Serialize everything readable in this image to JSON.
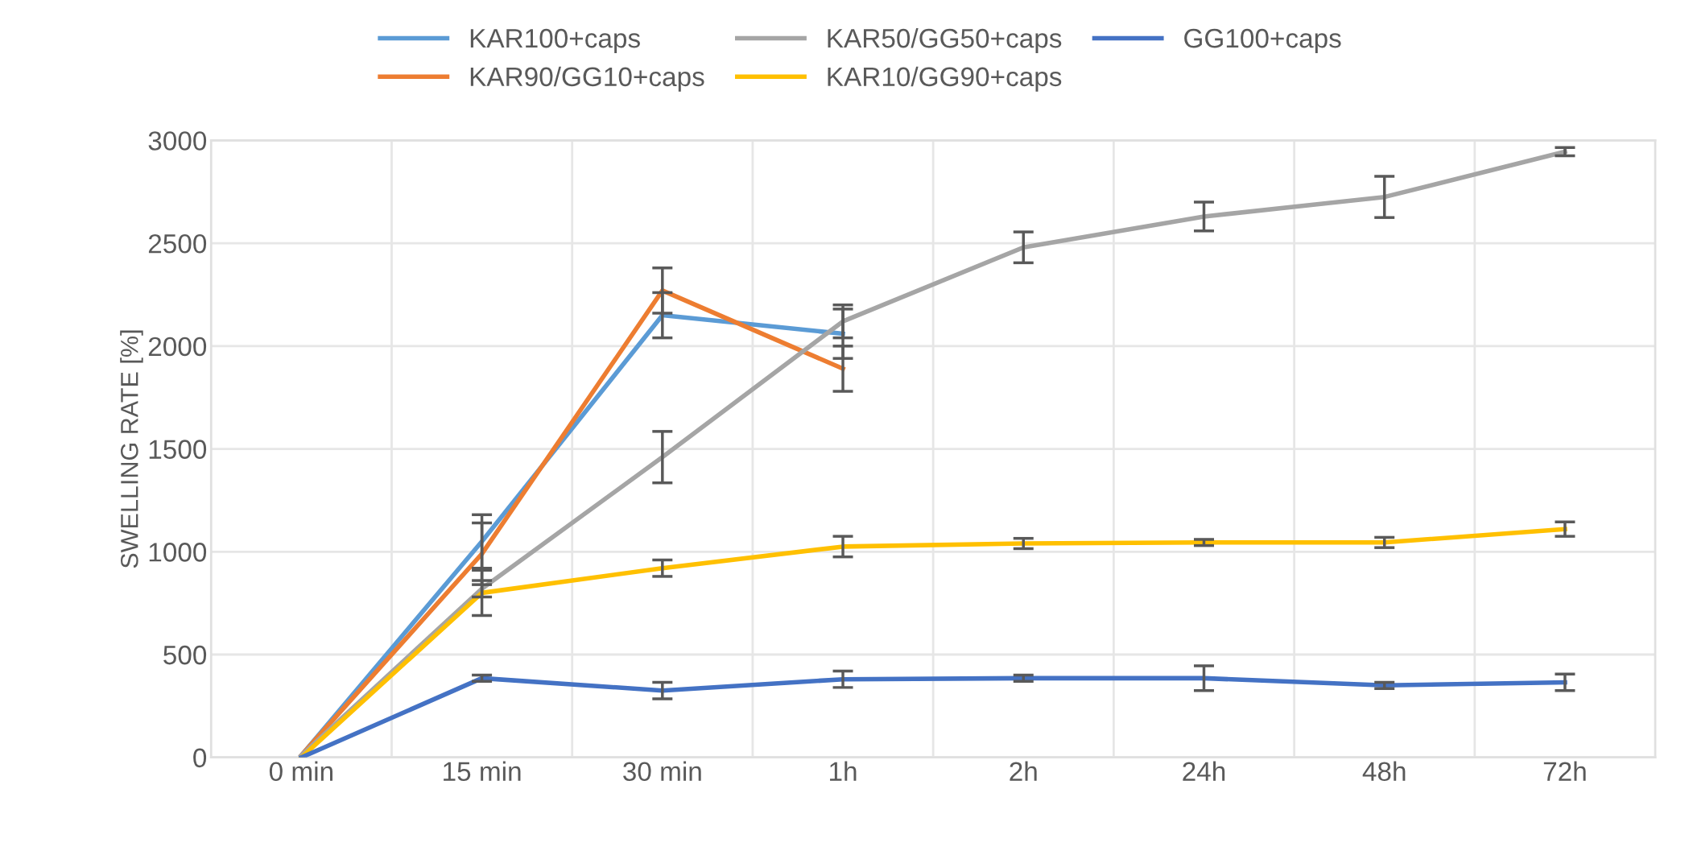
{
  "chart_data": {
    "type": "line",
    "ylabel": "SWELLING RATE [%]",
    "categories": [
      "0 min",
      "15 min",
      "30 min",
      "1h",
      "2h",
      "24h",
      "48h",
      "72h"
    ],
    "series": [
      {
        "name": "KAR100+caps",
        "color": "#5b9bd5",
        "values": [
          10,
          1050,
          2150,
          2060,
          null,
          null,
          null,
          null
        ],
        "errors": [
          null,
          130,
          110,
          120,
          null,
          null,
          null,
          null
        ]
      },
      {
        "name": "KAR90/GG10+caps",
        "color": "#ed7d31",
        "values": [
          10,
          990,
          2270,
          1890,
          null,
          null,
          null,
          null
        ],
        "errors": [
          null,
          150,
          110,
          110,
          null,
          null,
          null,
          null
        ]
      },
      {
        "name": "KAR50/GG50+caps",
        "color": "#a5a5a5",
        "values": [
          10,
          820,
          1460,
          2120,
          2480,
          2630,
          2725,
          2945
        ],
        "errors": [
          null,
          40,
          125,
          80,
          75,
          70,
          100,
          20
        ]
      },
      {
        "name": "KAR10/GG90+caps",
        "color": "#ffc000",
        "values": [
          0,
          800,
          920,
          1025,
          1040,
          1045,
          1045,
          1110
        ],
        "errors": [
          null,
          110,
          40,
          50,
          25,
          15,
          25,
          35
        ]
      },
      {
        "name": "GG100+caps",
        "color": "#4472c4",
        "values": [
          0,
          385,
          325,
          380,
          385,
          385,
          350,
          365
        ],
        "errors": [
          null,
          15,
          40,
          40,
          15,
          60,
          15,
          40
        ]
      }
    ],
    "ylim": [
      0,
      3000
    ],
    "yticks": [
      0,
      500,
      1000,
      1500,
      2000,
      2500,
      3000
    ],
    "grid": true,
    "legend": "top",
    "marker": "none",
    "line_style": "solid"
  }
}
